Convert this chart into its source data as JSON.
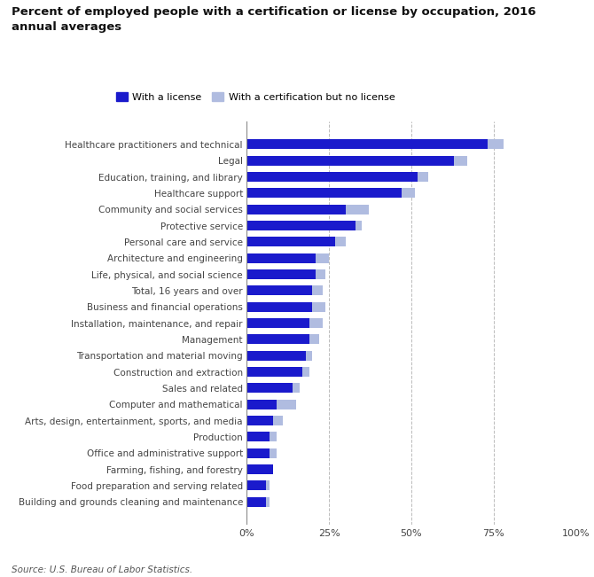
{
  "title": "Percent of employed people with a certification or license by occupation, 2016\nannual averages",
  "categories": [
    "Healthcare practitioners and technical",
    "Legal",
    "Education, training, and library",
    "Healthcare support",
    "Community and social services",
    "Protective service",
    "Personal care and service",
    "Architecture and engineering",
    "Life, physical, and social science",
    "Total, 16 years and over",
    "Business and financial operations",
    "Installation, maintenance, and repair",
    "Management",
    "Transportation and material moving",
    "Construction and extraction",
    "Sales and related",
    "Computer and mathematical",
    "Arts, design, entertainment, sports, and media",
    "Production",
    "Office and administrative support",
    "Farming, fishing, and forestry",
    "Food preparation and serving related",
    "Building and grounds cleaning and maintenance"
  ],
  "license_values": [
    73,
    63,
    52,
    47,
    30,
    33,
    27,
    21,
    21,
    20,
    20,
    19,
    19,
    18,
    17,
    14,
    9,
    8,
    7,
    7,
    8,
    6,
    6
  ],
  "cert_values": [
    5,
    4,
    3,
    4,
    7,
    2,
    3,
    4,
    3,
    3,
    4,
    4,
    3,
    2,
    2,
    2,
    6,
    3,
    2,
    2,
    0,
    1,
    1
  ],
  "license_color": "#1a1acc",
  "cert_color": "#b0bce0",
  "background_color": "#ffffff",
  "source_text": "Source: U.S. Bureau of Labor Statistics.",
  "xlim": [
    0,
    100
  ],
  "xticks": [
    0,
    25,
    50,
    75,
    100
  ],
  "xticklabels": [
    "0%",
    "25%",
    "50%",
    "75%",
    "100%"
  ],
  "title_fontsize": 9.5,
  "label_fontsize": 7.5,
  "tick_fontsize": 8.0
}
